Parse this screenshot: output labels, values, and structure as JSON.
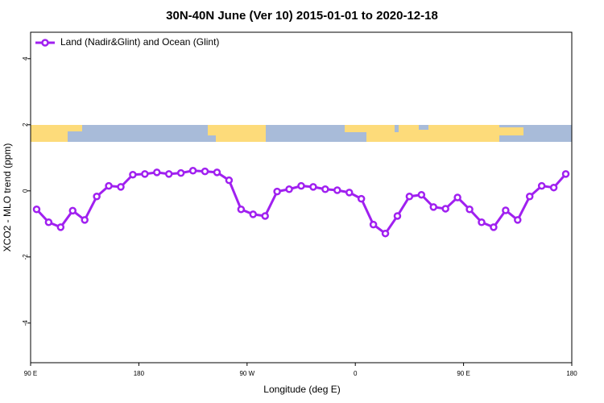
{
  "chart_data": {
    "type": "line",
    "title": "30N-40N June (Ver 10)   2015-01-01 to 2020-12-18",
    "x_label": "Longitude (deg E)",
    "y_label": "XCO2 - MLO trend (ppm)",
    "x": [
      95,
      105,
      115,
      125,
      135,
      145,
      155,
      165,
      175,
      185,
      195,
      205,
      215,
      225,
      235,
      245,
      255,
      265,
      275,
      285,
      295,
      305,
      315,
      325,
      335,
      345,
      355,
      365,
      375,
      385,
      395,
      405,
      415,
      425,
      435,
      445,
      455,
      465,
      475,
      485,
      495,
      505,
      515,
      525,
      535
    ],
    "series": [
      {
        "name": "Land (Nadir&Glint) and Ocean (Glint)",
        "color": "#a020f0",
        "values": [
          -0.56,
          -0.95,
          -1.1,
          -0.6,
          -0.88,
          -0.17,
          0.15,
          0.12,
          0.49,
          0.51,
          0.56,
          0.51,
          0.54,
          0.61,
          0.59,
          0.56,
          0.32,
          -0.56,
          -0.71,
          -0.76,
          -0.02,
          0.05,
          0.15,
          0.12,
          0.05,
          0.02,
          -0.05,
          -0.24,
          -1.02,
          -1.29,
          -0.76,
          -0.17,
          -0.12,
          -0.49,
          -0.54,
          -0.2,
          -0.56,
          -0.95,
          -1.1,
          -0.59,
          -0.88,
          -0.17,
          0.15,
          0.1,
          0.51
        ]
      }
    ],
    "xlim": [
      90,
      540
    ],
    "xticks": [
      {
        "value": 90,
        "label": "90 E"
      },
      180,
      {
        "value": 270,
        "label": "90 W"
      },
      {
        "value": 360,
        "label": "0"
      },
      {
        "value": 450,
        "label": "90 E"
      },
      {
        "value": 540,
        "label": "180"
      }
    ],
    "ylim": [
      -5.2,
      4.8
    ],
    "yticks": [
      4,
      2,
      0,
      -2,
      -4
    ],
    "legend": "top-left",
    "grid": false
  }
}
